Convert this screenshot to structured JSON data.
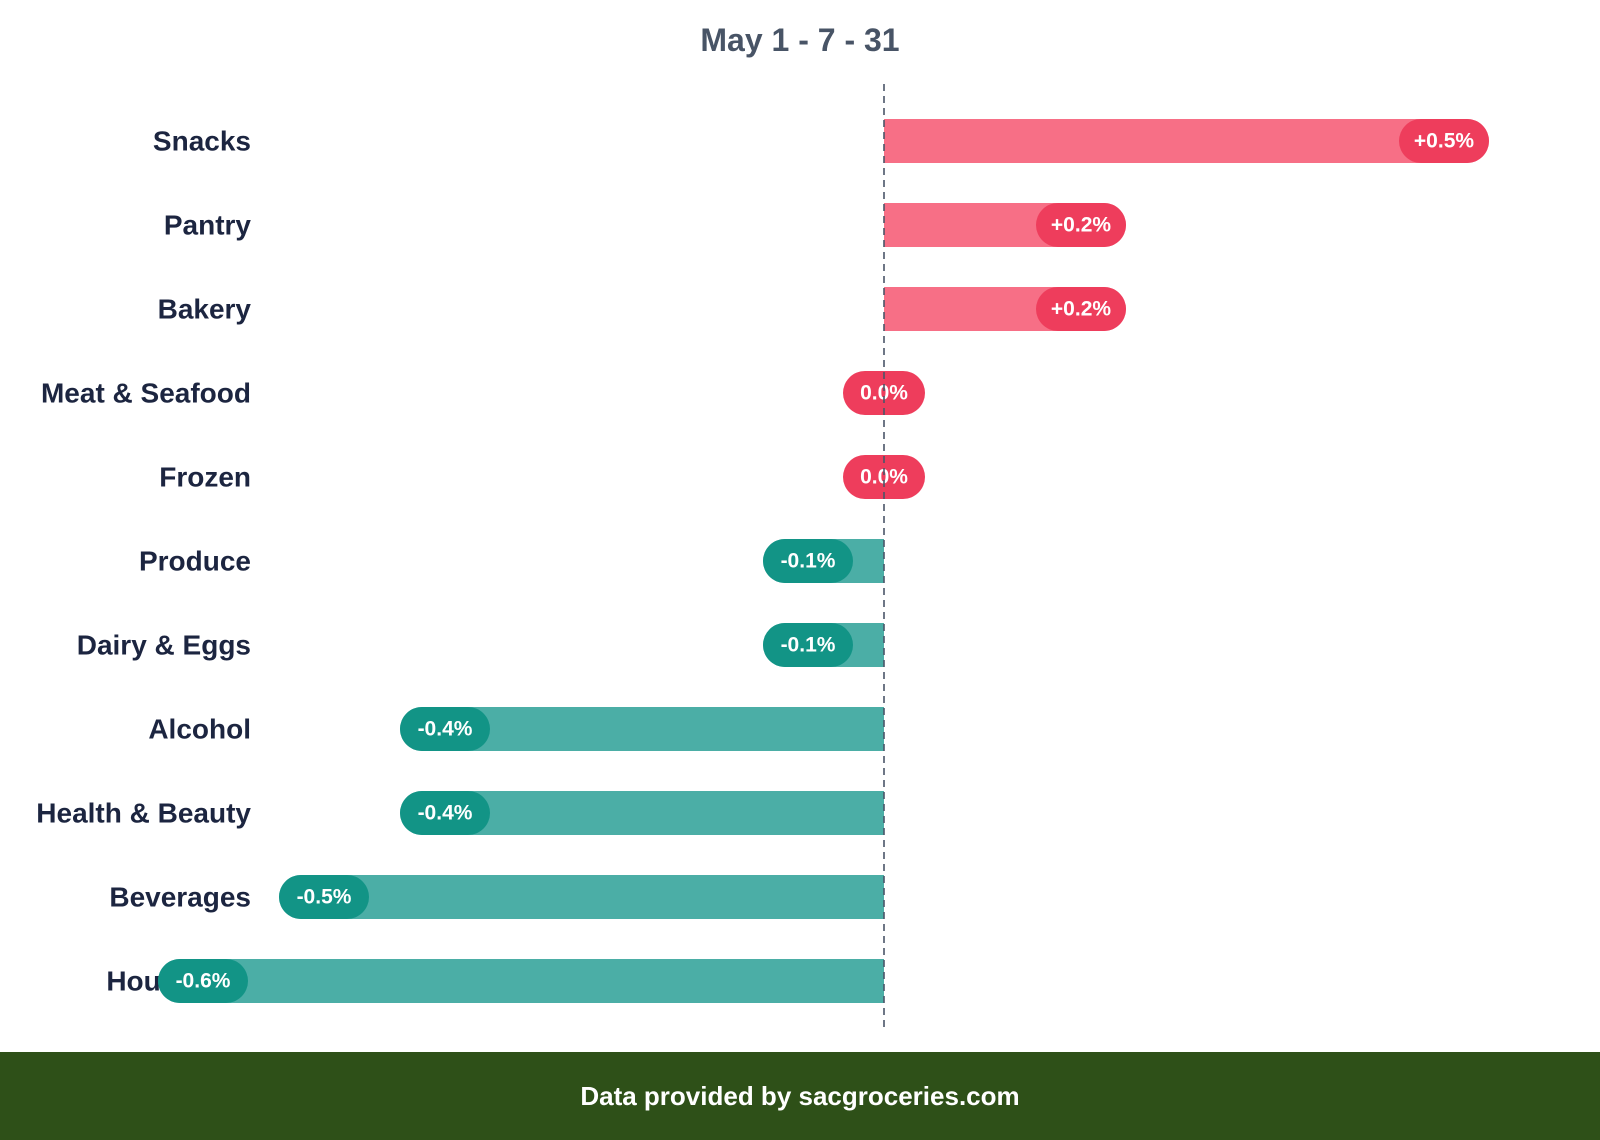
{
  "colors": {
    "positive_bar": "#f76f86",
    "positive_pill": "#ee3d5c",
    "negative_bar": "#4baea6",
    "negative_pill": "#129486",
    "zero_line": "#4a5568",
    "label_text": "#1c2540",
    "footer_bg": "#2e5018"
  },
  "chart_data": {
    "type": "bar",
    "orientation": "horizontal",
    "title": "May 1 - 7 - 31",
    "categories": [
      "Snacks",
      "Pantry",
      "Bakery",
      "Meat & Seafood",
      "Frozen",
      "Produce",
      "Dairy & Eggs",
      "Alcohol",
      "Health & Beauty",
      "Beverages",
      "Household"
    ],
    "values": [
      0.5,
      0.2,
      0.2,
      0.0,
      0.0,
      -0.1,
      -0.1,
      -0.4,
      -0.4,
      -0.5,
      -0.6
    ],
    "value_labels": [
      "+0.5%",
      "+0.2%",
      "+0.2%",
      "0.0%",
      "0.0%",
      "-0.1%",
      "-0.1%",
      "-0.4%",
      "-0.4%",
      "-0.5%",
      "-0.6%"
    ],
    "unit": "%",
    "xlim": [
      -0.6,
      0.6
    ],
    "grid": false,
    "zero_line": "dashed"
  },
  "footer": {
    "text": "Data provided by sacgroceries.com"
  }
}
